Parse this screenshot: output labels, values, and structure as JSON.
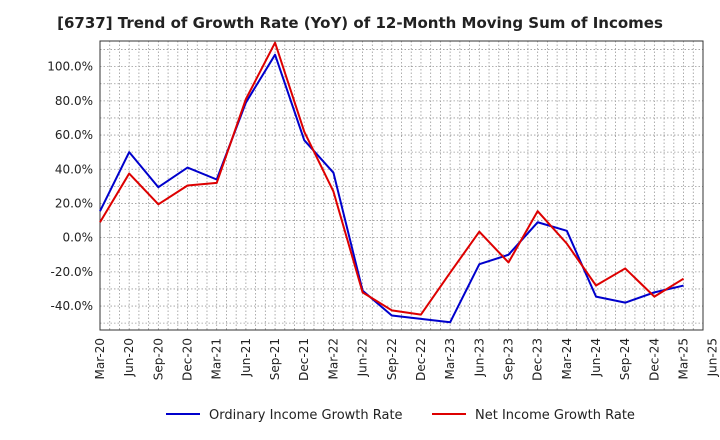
{
  "chart_data": {
    "type": "line",
    "title": "[6737]  Trend of Growth Rate (YoY) of 12-Month Moving Sum of Incomes",
    "xlabel": "",
    "ylabel": "",
    "x_ticks": [
      "Mar-20",
      "Jun-20",
      "Sep-20",
      "Dec-20",
      "Mar-21",
      "Jun-21",
      "Sep-21",
      "Dec-21",
      "Mar-22",
      "Jun-22",
      "Sep-22",
      "Dec-22",
      "Mar-23",
      "Jun-23",
      "Sep-23",
      "Dec-23",
      "Mar-24",
      "Jun-24",
      "Sep-24",
      "Dec-24",
      "Mar-25",
      "Jun-25"
    ],
    "x": [
      "Mar-20",
      "Apr-20",
      "May-20",
      "Jun-20",
      "Jul-20",
      "Aug-20",
      "Sep-20",
      "Oct-20",
      "Nov-20",
      "Dec-20",
      "Jan-21",
      "Feb-21",
      "Mar-21",
      "Apr-21",
      "May-21",
      "Jun-21",
      "Jul-21",
      "Aug-21",
      "Sep-21",
      "Oct-21",
      "Nov-21",
      "Dec-21",
      "Jan-22",
      "Feb-22",
      "Mar-22",
      "Apr-22",
      "May-22",
      "Jun-22",
      "Jul-22",
      "Aug-22",
      "Sep-22",
      "Oct-22",
      "Nov-22",
      "Dec-22",
      "Jan-23",
      "Feb-23",
      "Mar-23",
      "Apr-23",
      "May-23",
      "Jun-23",
      "Jul-23",
      "Aug-23",
      "Sep-23",
      "Oct-23",
      "Nov-23",
      "Dec-23",
      "Jan-24",
      "Feb-24",
      "Mar-24",
      "Apr-24",
      "May-24",
      "Jun-24",
      "Jul-24",
      "Aug-24",
      "Sep-24",
      "Oct-24",
      "Nov-24",
      "Dec-24",
      "Jan-25",
      "Feb-25",
      "Mar-25"
    ],
    "y_ticks": [
      "100.0%",
      "80.0%",
      "60.0%",
      "40.0%",
      "20.0%",
      "0.0%",
      "-20.0%",
      "-40.0%"
    ],
    "y_tick_values": [
      100,
      80,
      60,
      40,
      20,
      0,
      -20,
      -40
    ],
    "ylim": [
      -54,
      115
    ],
    "grid": true,
    "legend_position": "bottom",
    "series": [
      {
        "name": "Ordinary Income Growth Rate",
        "color": "#0000cc",
        "values": [
          15.5,
          null,
          null,
          50.0,
          null,
          null,
          29.5,
          null,
          null,
          41.0,
          null,
          null,
          34.0,
          null,
          null,
          79.0,
          null,
          null,
          107.0,
          null,
          null,
          57.0,
          null,
          null,
          38.0,
          null,
          null,
          -31.0,
          null,
          null,
          -45.5,
          null,
          null,
          -47.5,
          null,
          null,
          -49.5,
          null,
          null,
          -15.5,
          null,
          null,
          -10.0,
          null,
          null,
          9.0,
          null,
          null,
          4.0,
          null,
          null,
          -34.5,
          null,
          null,
          -38.0,
          null,
          null,
          -32.0,
          null,
          null,
          -28.0
        ]
      },
      {
        "name": "Net Income Growth Rate",
        "color": "#dd0000",
        "values": [
          9.0,
          null,
          null,
          37.5,
          null,
          null,
          19.5,
          null,
          null,
          30.5,
          null,
          null,
          32.0,
          null,
          null,
          81.0,
          null,
          null,
          114.0,
          null,
          null,
          62.0,
          null,
          null,
          27.0,
          null,
          null,
          -32.0,
          null,
          null,
          -42.5,
          null,
          null,
          -45.0,
          null,
          null,
          -20.5,
          null,
          null,
          3.5,
          null,
          null,
          -14.5,
          null,
          null,
          15.5,
          null,
          null,
          -3.5,
          null,
          null,
          -28.0,
          null,
          null,
          -18.0,
          null,
          null,
          -34.5,
          null,
          null,
          -24.0
        ]
      }
    ]
  }
}
